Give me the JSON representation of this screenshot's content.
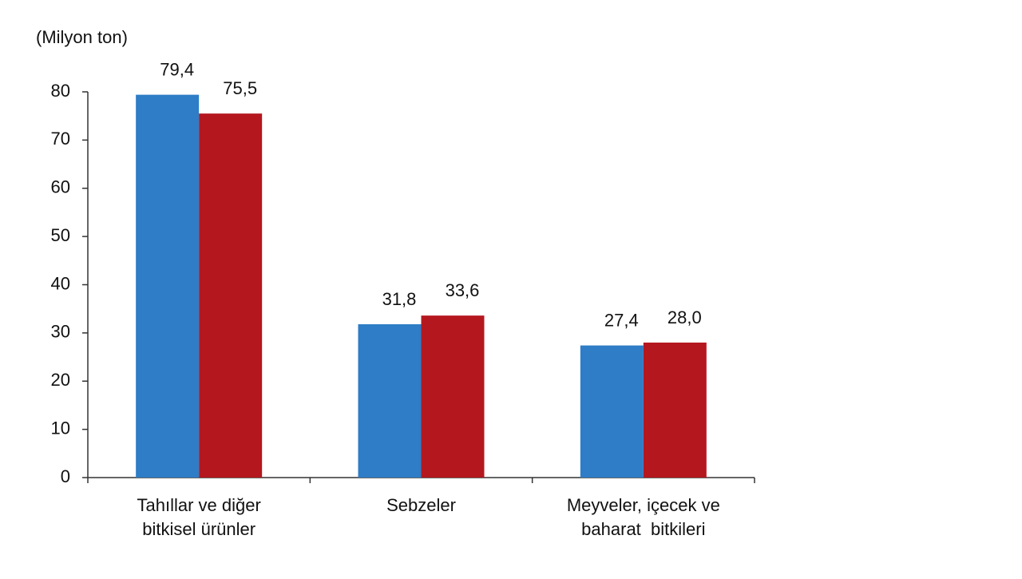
{
  "chart_data": {
    "type": "bar",
    "y_label": "(Milyon ton)",
    "categories": [
      [
        "Tahıllar ve diğer",
        "bitkisel ürünler"
      ],
      [
        "Sebzeler"
      ],
      [
        "Meyveler, içecek ve",
        "baharat  bitkileri"
      ]
    ],
    "series": [
      {
        "color": "#2e7dc6",
        "values": [
          79.4,
          31.8,
          27.4
        ],
        "value_labels": [
          "79,4",
          "31,8",
          "27,4"
        ]
      },
      {
        "color": "#b5171e",
        "values": [
          75.5,
          33.6,
          28.0
        ],
        "value_labels": [
          "75,5",
          "33,6",
          "28,0"
        ]
      }
    ],
    "ylim": [
      0,
      80
    ],
    "yticks": [
      0,
      10,
      20,
      30,
      40,
      50,
      60,
      70,
      80
    ],
    "grid": false
  }
}
